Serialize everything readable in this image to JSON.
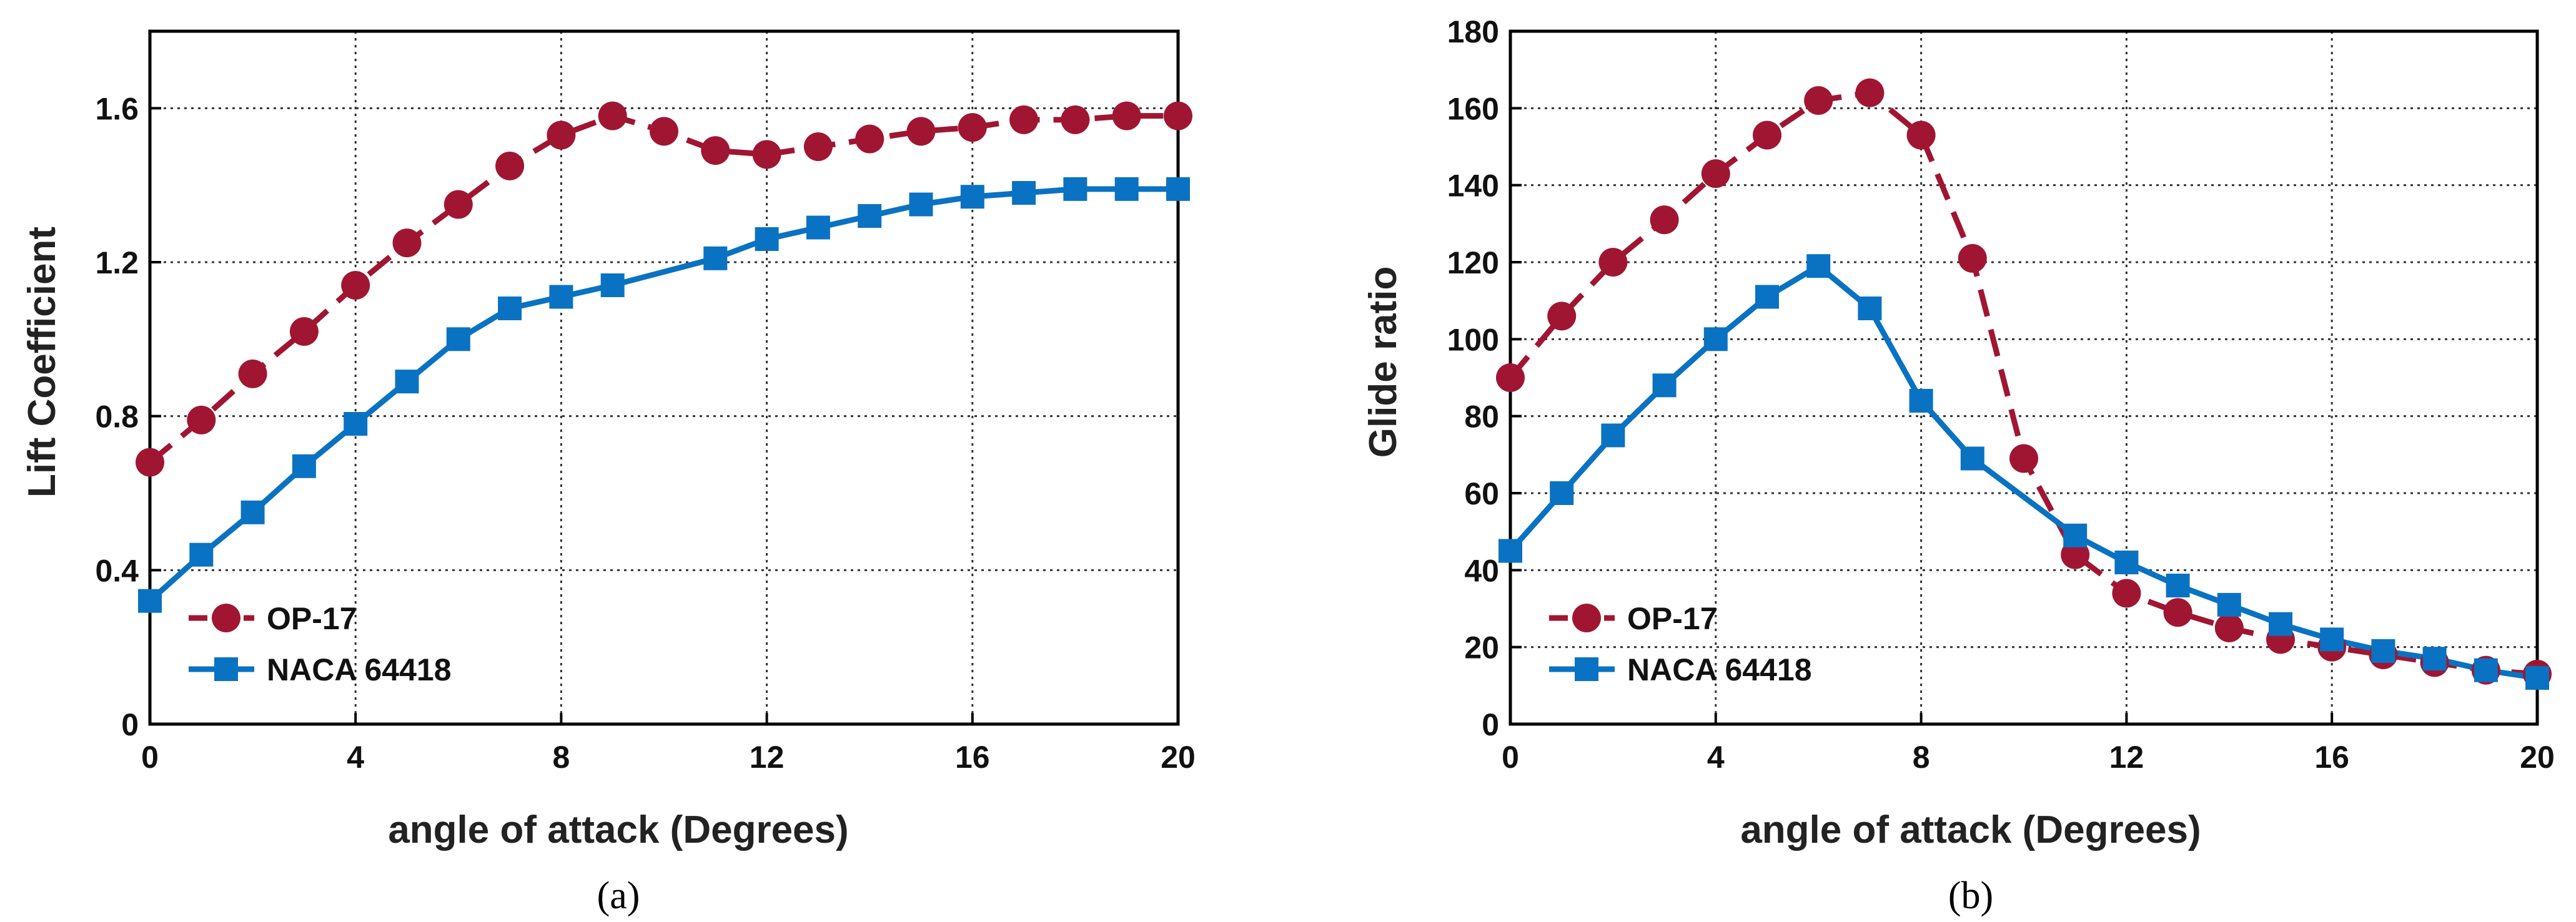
{
  "colors": {
    "op17": "#A01632",
    "naca": "#0A72C2",
    "grid": "#333333",
    "axis": "#000000"
  },
  "chart_data": [
    {
      "type": "line",
      "panel": "a",
      "caption": "(a)",
      "xlabel": "angle of attack (Degrees)",
      "ylabel": "Lift Coefficient",
      "xlim": [
        0,
        20
      ],
      "ylim": [
        0,
        1.8
      ],
      "xticks": [
        0,
        4,
        8,
        12,
        16,
        20
      ],
      "yticks": [
        0,
        0.4,
        0.8,
        1.2,
        1.6
      ],
      "xtick_labels": [
        "0",
        "4",
        "8",
        "12",
        "16",
        "20"
      ],
      "ytick_labels": [
        "0",
        "0.4",
        "0.8",
        "1.2",
        "1.6"
      ],
      "grid": true,
      "legend_position": "bottom-left",
      "series": [
        {
          "name": "OP-17",
          "style": "dashed",
          "marker": "circle",
          "x": [
            0,
            1,
            2,
            3,
            4,
            5,
            6,
            7,
            8,
            9,
            10,
            11,
            12,
            13,
            14,
            15,
            16,
            17,
            18,
            19,
            20
          ],
          "values": [
            0.68,
            0.79,
            0.91,
            1.02,
            1.14,
            1.25,
            1.35,
            1.45,
            1.53,
            1.58,
            1.54,
            1.49,
            1.48,
            1.5,
            1.52,
            1.54,
            1.55,
            1.57,
            1.57,
            1.58,
            1.58
          ]
        },
        {
          "name": "NACA 64418",
          "style": "solid",
          "marker": "square",
          "x": [
            0,
            1,
            2,
            3,
            4,
            5,
            6,
            7,
            8,
            9,
            11,
            12,
            13,
            14,
            15,
            16,
            17,
            18,
            19,
            20
          ],
          "values": [
            0.32,
            0.44,
            0.55,
            0.67,
            0.78,
            0.89,
            1.0,
            1.08,
            1.11,
            1.14,
            1.21,
            1.26,
            1.29,
            1.32,
            1.35,
            1.37,
            1.38,
            1.39,
            1.39,
            1.39
          ]
        }
      ]
    },
    {
      "type": "line",
      "panel": "b",
      "caption": "(b)",
      "xlabel": "angle of attack (Degrees)",
      "ylabel": "Glide ratio",
      "xlim": [
        0,
        20
      ],
      "ylim": [
        0,
        180
      ],
      "xticks": [
        0,
        4,
        8,
        12,
        16,
        20
      ],
      "yticks": [
        0,
        20,
        40,
        60,
        80,
        100,
        120,
        140,
        160,
        180
      ],
      "xtick_labels": [
        "0",
        "4",
        "8",
        "12",
        "16",
        "20"
      ],
      "ytick_labels": [
        "0",
        "20",
        "40",
        "60",
        "80",
        "100",
        "120",
        "140",
        "160",
        "180"
      ],
      "grid": true,
      "legend_position": "bottom-left",
      "series": [
        {
          "name": "OP-17",
          "style": "dashed",
          "marker": "circle",
          "x": [
            0,
            1,
            2,
            3,
            4,
            5,
            6,
            7,
            8,
            9,
            10,
            11,
            12,
            13,
            14,
            15,
            16,
            17,
            18,
            19,
            20
          ],
          "values": [
            90,
            106,
            120,
            131,
            143,
            153,
            162,
            164,
            153,
            121,
            69,
            44,
            34,
            29,
            25,
            22,
            20,
            18,
            16,
            14,
            13
          ]
        },
        {
          "name": "NACA 64418",
          "style": "solid",
          "marker": "square",
          "x": [
            0,
            1,
            2,
            3,
            4,
            5,
            6,
            7,
            8,
            9,
            11,
            12,
            13,
            14,
            15,
            16,
            17,
            18,
            19,
            20
          ],
          "values": [
            45,
            60,
            75,
            88,
            100,
            111,
            119,
            108,
            84,
            69,
            49,
            42,
            36,
            31,
            26,
            22,
            19,
            17,
            14,
            12
          ]
        }
      ]
    }
  ]
}
